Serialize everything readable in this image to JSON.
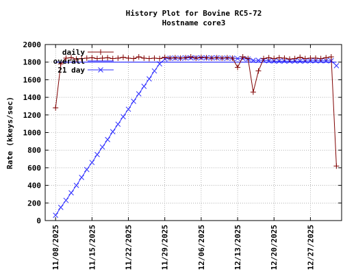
{
  "chart_data": {
    "type": "line",
    "title": "History Plot for Bovine RC5-72",
    "subtitle": "Hostname core3",
    "xlabel": "",
    "ylabel": "Rate (kkeys/sec)",
    "ylim": [
      0,
      2000
    ],
    "yticks": [
      0,
      200,
      400,
      600,
      800,
      1000,
      1200,
      1400,
      1600,
      1800,
      2000
    ],
    "xlim": [
      "2025-11-06",
      "2026-01-02"
    ],
    "xticks": [
      "11/08/2025",
      "11/15/2025",
      "11/22/2025",
      "11/29/2025",
      "12/06/2025",
      "12/13/2025",
      "12/20/2025",
      "12/27/2025"
    ],
    "grid": true,
    "legend_position": "top-left",
    "series": [
      {
        "name": "daily",
        "color": "#7f0000",
        "marker": "plus",
        "x": [
          "2025-11-08",
          "2025-11-09",
          "2025-11-10",
          "2025-11-11",
          "2025-11-12",
          "2025-11-13",
          "2025-11-14",
          "2025-11-15",
          "2025-11-16",
          "2025-11-17",
          "2025-11-18",
          "2025-11-19",
          "2025-11-20",
          "2025-11-21",
          "2025-11-22",
          "2025-11-23",
          "2025-11-24",
          "2025-11-25",
          "2025-11-26",
          "2025-11-27",
          "2025-11-28",
          "2025-11-29",
          "2025-11-30",
          "2025-12-01",
          "2025-12-02",
          "2025-12-03",
          "2025-12-04",
          "2025-12-05",
          "2025-12-06",
          "2025-12-07",
          "2025-12-08",
          "2025-12-09",
          "2025-12-10",
          "2025-12-11",
          "2025-12-12",
          "2025-12-13",
          "2025-12-14",
          "2025-12-15",
          "2025-12-16",
          "2025-12-17",
          "2025-12-18",
          "2025-12-19",
          "2025-12-20",
          "2025-12-21",
          "2025-12-22",
          "2025-12-23",
          "2025-12-24",
          "2025-12-25",
          "2025-12-26",
          "2025-12-27",
          "2025-12-28",
          "2025-12-29",
          "2025-12-30",
          "2025-12-31",
          "2026-01-01"
        ],
        "values": [
          1280,
          1780,
          1845,
          1850,
          1835,
          1840,
          1845,
          1850,
          1840,
          1845,
          1850,
          1840,
          1845,
          1855,
          1845,
          1840,
          1860,
          1845,
          1840,
          1845,
          1840,
          1855,
          1845,
          1850,
          1845,
          1850,
          1860,
          1845,
          1855,
          1850,
          1845,
          1850,
          1845,
          1850,
          1845,
          1740,
          1860,
          1840,
          1460,
          1700,
          1840,
          1850,
          1840,
          1850,
          1845,
          1835,
          1840,
          1855,
          1840,
          1845,
          1845,
          1840,
          1850,
          1860,
          620
        ]
      },
      {
        "name": "overall",
        "color": "#0000ff",
        "marker": "none",
        "x": [
          "2025-11-08",
          "2026-01-01"
        ],
        "values": [
          1800,
          1800
        ]
      },
      {
        "name": "21 day",
        "color": "#3030ff",
        "marker": "x",
        "x": [
          "2025-11-08",
          "2025-11-09",
          "2025-11-10",
          "2025-11-11",
          "2025-11-12",
          "2025-11-13",
          "2025-11-14",
          "2025-11-15",
          "2025-11-16",
          "2025-11-17",
          "2025-11-18",
          "2025-11-19",
          "2025-11-20",
          "2025-11-21",
          "2025-11-22",
          "2025-11-23",
          "2025-11-24",
          "2025-11-25",
          "2025-11-26",
          "2025-11-27",
          "2025-11-28",
          "2025-11-29",
          "2025-11-30",
          "2025-12-01",
          "2025-12-02",
          "2025-12-03",
          "2025-12-04",
          "2025-12-05",
          "2025-12-06",
          "2025-12-07",
          "2025-12-08",
          "2025-12-09",
          "2025-12-10",
          "2025-12-11",
          "2025-12-12",
          "2025-12-13",
          "2025-12-14",
          "2025-12-15",
          "2025-12-16",
          "2025-12-17",
          "2025-12-18",
          "2025-12-19",
          "2025-12-20",
          "2025-12-21",
          "2025-12-22",
          "2025-12-23",
          "2025-12-24",
          "2025-12-25",
          "2025-12-26",
          "2025-12-27",
          "2025-12-28",
          "2025-12-29",
          "2025-12-30",
          "2025-12-31",
          "2026-01-01"
        ],
        "values": [
          60,
          150,
          230,
          315,
          400,
          490,
          580,
          660,
          750,
          835,
          920,
          1010,
          1095,
          1180,
          1265,
          1355,
          1440,
          1525,
          1610,
          1700,
          1780,
          1835,
          1845,
          1845,
          1845,
          1848,
          1848,
          1848,
          1848,
          1848,
          1848,
          1848,
          1845,
          1845,
          1845,
          1840,
          1840,
          1835,
          1820,
          1820,
          1820,
          1815,
          1812,
          1812,
          1812,
          1812,
          1812,
          1812,
          1812,
          1815,
          1815,
          1815,
          1815,
          1815,
          1760
        ]
      }
    ]
  }
}
